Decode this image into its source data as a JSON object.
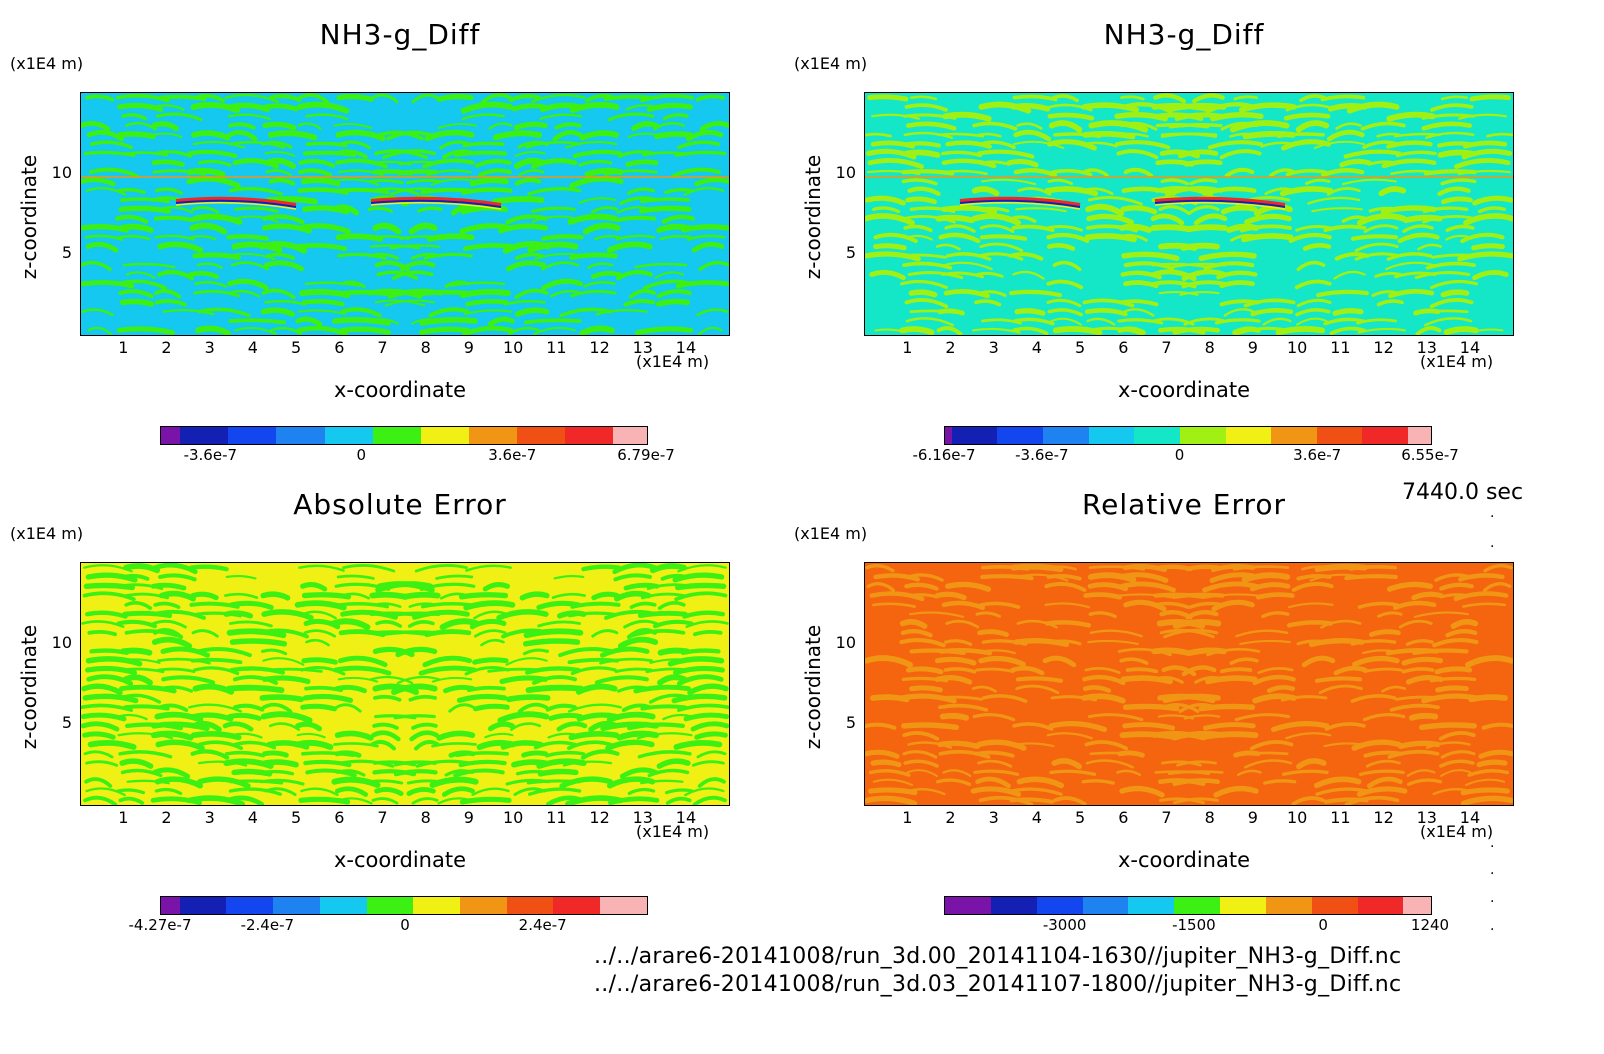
{
  "time_label": "7440.0 sec",
  "files": [
    "../../arare6-20141008/run_3d.00_20141104-1630//jupiter_NH3-g_Diff.nc",
    "../../arare6-20141008/run_3d.03_20141107-1800//jupiter_NH3-g_Diff.nc"
  ],
  "colors": {
    "purple": "#7a14a8",
    "navy": "#1420b4",
    "blue": "#1446f0",
    "midblue": "#1e82f0",
    "cyan": "#14c8f0",
    "aqua": "#14e6c8",
    "green": "#3cf014",
    "lime": "#a0f014",
    "yellow": "#f0f014",
    "orange": "#f09614",
    "redorange": "#f05014",
    "red": "#f02828",
    "pink": "#f8b4b4"
  },
  "chart_data": [
    {
      "type": "heatmap",
      "title": "NH3-g_Diff",
      "xlabel": "x-coordinate",
      "ylabel": "z-coordinate",
      "x_unit": "(x1E4 m)",
      "y_unit": "(x1E4 m)",
      "xlim": [
        0,
        15
      ],
      "ylim": [
        0,
        15
      ],
      "x_ticks": [
        "1",
        "2",
        "3",
        "4",
        "5",
        "6",
        "7",
        "8",
        "9",
        "10",
        "11",
        "12",
        "13",
        "14"
      ],
      "y_ticks": [
        "5",
        "10"
      ],
      "colorbar": {
        "range": [
          -4.8e-07,
          6.79e-07
        ],
        "labels": [
          {
            "text": "-3.6e-7",
            "value": -3.6e-07
          },
          {
            "text": "0",
            "value": 0
          },
          {
            "text": "3.6e-7",
            "value": 3.6e-07
          },
          {
            "text": "6.79e-7",
            "value": 6.79e-07
          }
        ]
      }
    },
    {
      "type": "heatmap",
      "title": "NH3-g_Diff",
      "xlabel": "x-coordinate",
      "ylabel": "z-coordinate",
      "x_unit": "(x1E4 m)",
      "y_unit": "(x1E4 m)",
      "xlim": [
        0,
        15
      ],
      "ylim": [
        0,
        15
      ],
      "x_ticks": [
        "1",
        "2",
        "3",
        "4",
        "5",
        "6",
        "7",
        "8",
        "9",
        "10",
        "11",
        "12",
        "13",
        "14"
      ],
      "y_ticks": [
        "5",
        "10"
      ],
      "colorbar": {
        "range": [
          -6.16e-07,
          6.55e-07
        ],
        "labels": [
          {
            "text": "-6.16e-7",
            "value": -6.16e-07
          },
          {
            "text": "-3.6e-7",
            "value": -3.6e-07
          },
          {
            "text": "0",
            "value": 0
          },
          {
            "text": "3.6e-7",
            "value": 3.6e-07
          },
          {
            "text": "6.55e-7",
            "value": 6.55e-07
          }
        ]
      }
    },
    {
      "type": "heatmap",
      "title": "Absolute Error",
      "xlabel": "x-coordinate",
      "ylabel": "z-coordinate",
      "x_unit": "(x1E4 m)",
      "y_unit": "(x1E4 m)",
      "xlim": [
        0,
        15
      ],
      "ylim": [
        0,
        15
      ],
      "x_ticks": [
        "1",
        "2",
        "3",
        "4",
        "5",
        "6",
        "7",
        "8",
        "9",
        "10",
        "11",
        "12",
        "13",
        "14"
      ],
      "y_ticks": [
        "5",
        "10"
      ],
      "colorbar": {
        "range": [
          -4.27e-07,
          4.2e-07
        ],
        "labels": [
          {
            "text": "-4.27e-7",
            "value": -4.27e-07
          },
          {
            "text": "-2.4e-7",
            "value": -2.4e-07
          },
          {
            "text": "0",
            "value": 0
          },
          {
            "text": "2.4e-7",
            "value": 2.4e-07
          }
        ]
      }
    },
    {
      "type": "heatmap",
      "title": "Relative Error",
      "xlabel": "x-coordinate",
      "ylabel": "z-coordinate",
      "x_unit": "(x1E4 m)",
      "y_unit": "(x1E4 m)",
      "xlim": [
        0,
        15
      ],
      "ylim": [
        0,
        15
      ],
      "x_ticks": [
        "1",
        "2",
        "3",
        "4",
        "5",
        "6",
        "7",
        "8",
        "9",
        "10",
        "11",
        "12",
        "13",
        "14"
      ],
      "y_ticks": [
        "5",
        "10"
      ],
      "colorbar": {
        "range": [
          -4400,
          1240
        ],
        "labels": [
          {
            "text": "-3000",
            "value": -3000
          },
          {
            "text": "-1500",
            "value": -1500
          },
          {
            "text": "0",
            "value": 0
          },
          {
            "text": "1240",
            "value": 1240
          }
        ]
      }
    }
  ]
}
